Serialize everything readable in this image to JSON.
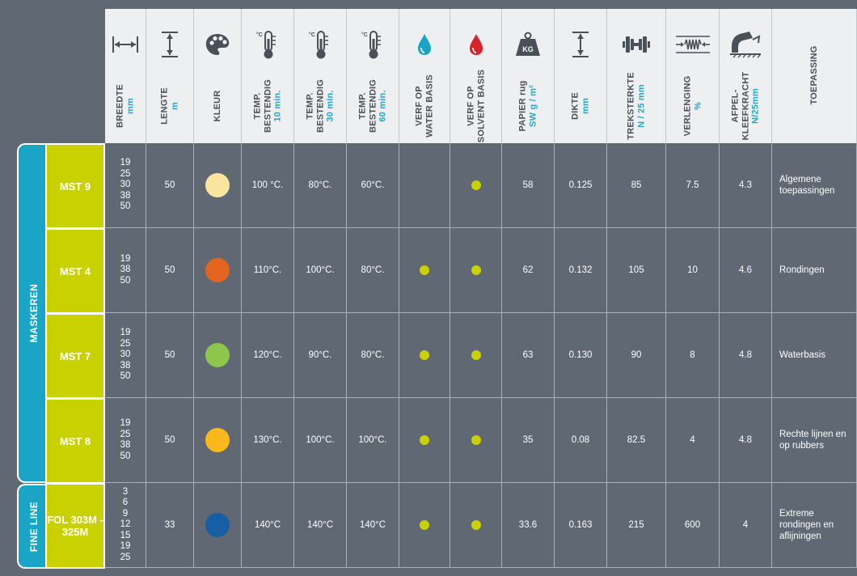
{
  "colors": {
    "background": "#5f6873",
    "header_bg": "#eeeff0",
    "accent_blue": "#1eaac9",
    "group_bg": "#1aa5c7",
    "product_bg": "#c9d200",
    "dot_yes": "#c9d200"
  },
  "headers": [
    {
      "key": "breedte",
      "lines": [
        "BREEDTE"
      ],
      "unit": "mm",
      "icon": "width-arrows-icon"
    },
    {
      "key": "lengte",
      "lines": [
        "LENGTE"
      ],
      "unit": "m",
      "icon": "length-arrows-icon"
    },
    {
      "key": "kleur",
      "lines": [
        "KLEUR"
      ],
      "unit": "",
      "icon": "palette-icon"
    },
    {
      "key": "temp10",
      "lines": [
        "TEMP.",
        "BESTENDIG"
      ],
      "unit": "10 min.",
      "icon": "thermometer-icon"
    },
    {
      "key": "temp30",
      "lines": [
        "TEMP.",
        "BESTENDIG"
      ],
      "unit": "30 min.",
      "icon": "thermometer-icon"
    },
    {
      "key": "temp60",
      "lines": [
        "TEMP.",
        "BESTENDIG"
      ],
      "unit": "60 min.",
      "icon": "thermometer-icon"
    },
    {
      "key": "water",
      "lines": [
        "VERF OP",
        "WATER BASIS"
      ],
      "unit": "",
      "icon": "water-drop-icon"
    },
    {
      "key": "solvent",
      "lines": [
        "VERF OP",
        "SOLVENT BASIS"
      ],
      "unit": "",
      "icon": "solvent-drop-icon"
    },
    {
      "key": "papier",
      "lines": [
        "PAPIER rug"
      ],
      "unit": "SW g / m²",
      "icon": "weight-kg-icon"
    },
    {
      "key": "dikte",
      "lines": [
        "DIKTE"
      ],
      "unit": "mm",
      "icon": "thickness-icon"
    },
    {
      "key": "treksterkte",
      "lines": [
        "TREKSTERKTE"
      ],
      "unit": "N / 25 mm",
      "icon": "dumbbell-icon"
    },
    {
      "key": "verlenging",
      "lines": [
        "VERLENGING"
      ],
      "unit": "%",
      "icon": "spring-icon"
    },
    {
      "key": "afpel",
      "lines": [
        "AFPEL-",
        "KLEEFKRACHT"
      ],
      "unit": "N/25mm",
      "icon": "peel-tape-icon"
    },
    {
      "key": "toepassing",
      "lines": [
        "TOEPASSING"
      ],
      "unit": "",
      "icon": ""
    }
  ],
  "icon_labels": {
    "kg": "KG",
    "celsius": "°C"
  },
  "groups": [
    {
      "label": "MASKEREN"
    },
    {
      "label": "FINE LINE"
    }
  ],
  "rows": [
    {
      "name": "MST 9",
      "breedte": "19\n25\n30\n38\n50",
      "lengte": "50",
      "kleur": "#fbe3a0",
      "temp10": "100 °C.",
      "temp30": "80°C.",
      "temp60": "60°C.",
      "water": false,
      "solvent": true,
      "papier": "58",
      "dikte": "0.125",
      "treksterkte": "85",
      "verlenging": "7.5",
      "afpel": "4.3",
      "toepassing": "Algemene toepassingen"
    },
    {
      "name": "MST 4",
      "breedte": "19\n38\n50",
      "lengte": "50",
      "kleur": "#e3651f",
      "temp10": "110°C.",
      "temp30": "100°C.",
      "temp60": "80°C.",
      "water": true,
      "solvent": true,
      "papier": "62",
      "dikte": "0.132",
      "treksterkte": "105",
      "verlenging": "10",
      "afpel": "4.6",
      "toepassing": "Rondingen"
    },
    {
      "name": "MST 7",
      "breedte": "19\n25\n30\n38\n50",
      "lengte": "50",
      "kleur": "#8dc64b",
      "temp10": "120°C.",
      "temp30": "90°C.",
      "temp60": "80°C.",
      "water": true,
      "solvent": true,
      "papier": "63",
      "dikte": "0.130",
      "treksterkte": "90",
      "verlenging": "8",
      "afpel": "4.8",
      "toepassing": "Waterbasis"
    },
    {
      "name": "MST 8",
      "breedte": "19\n25\n38\n50",
      "lengte": "50",
      "kleur": "#fbb81b",
      "temp10": "130°C.",
      "temp30": "100°C.",
      "temp60": "100°C.",
      "water": true,
      "solvent": true,
      "papier": "35",
      "dikte": "0.08",
      "treksterkte": "82.5",
      "verlenging": "4",
      "afpel": "4.8",
      "toepassing": "Rechte lijnen en op rubbers"
    },
    {
      "name": "FOL 303M - 325M",
      "breedte": "3\n6\n9\n12\n15\n19\n25",
      "lengte": "33",
      "kleur": "#165fa4",
      "temp10": "140°C",
      "temp30": "140°C",
      "temp60": "140°C",
      "water": true,
      "solvent": true,
      "papier": "33.6",
      "dikte": "0.163",
      "treksterkte": "215",
      "verlenging": "600",
      "afpel": "4",
      "toepassing": "Extreme rondingen en aflijningen"
    }
  ]
}
